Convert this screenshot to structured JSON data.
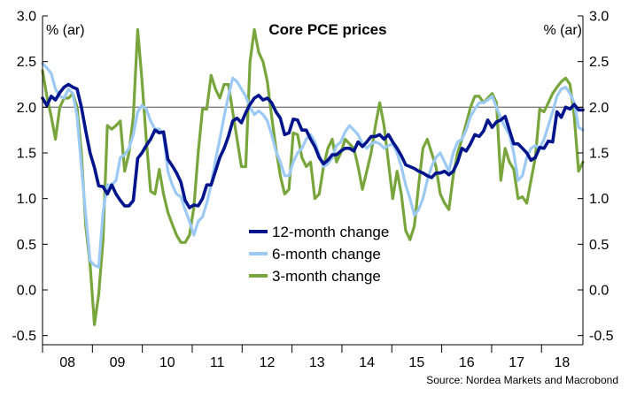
{
  "chart_data": {
    "type": "line",
    "title": "Core PCE prices",
    "ylabel_left": "% (ar)",
    "ylabel_right": "% (ar)",
    "source": "Source: Nordea Markets and Macrobond",
    "ylim": [
      -0.6,
      3.0
    ],
    "y_ticks": [
      "3.0",
      "2.5",
      "2.0",
      "1.5",
      "1.0",
      "0.5",
      "0.0",
      "-0.5"
    ],
    "y_tick_values": [
      3.0,
      2.5,
      2.0,
      1.5,
      1.0,
      0.5,
      0.0,
      -0.5
    ],
    "x_ticks": [
      "08",
      "09",
      "10",
      "11",
      "12",
      "13",
      "14",
      "15",
      "16",
      "17",
      "18"
    ],
    "x_start": 2008.0,
    "x_end": 2018.83,
    "reference_line": 2.0,
    "colors": {
      "12m": "#00148c",
      "6m": "#9ccaf5",
      "3m": "#78a53c",
      "ref": "#7f7f7f"
    },
    "legend_position": "center-left",
    "series": [
      {
        "name": "12-month change",
        "key": "12m",
        "values": [
          2.1,
          2.02,
          2.12,
          2.08,
          2.16,
          2.22,
          2.25,
          2.22,
          2.2,
          2.0,
          1.74,
          1.5,
          1.34,
          1.14,
          1.13,
          1.05,
          1.15,
          1.05,
          0.98,
          0.92,
          0.92,
          0.98,
          1.44,
          1.5,
          1.58,
          1.65,
          1.75,
          1.72,
          1.73,
          1.43,
          1.36,
          1.28,
          1.18,
          0.98,
          0.9,
          0.93,
          0.92,
          1.0,
          1.15,
          1.15,
          1.3,
          1.45,
          1.55,
          1.68,
          1.85,
          1.88,
          1.83,
          1.94,
          2.03,
          2.1,
          2.13,
          2.08,
          2.1,
          2.05,
          1.95,
          1.88,
          1.7,
          1.72,
          1.87,
          1.86,
          1.75,
          1.75,
          1.65,
          1.57,
          1.45,
          1.38,
          1.42,
          1.48,
          1.48,
          1.52,
          1.55,
          1.55,
          1.52,
          1.62,
          1.57,
          1.62,
          1.68,
          1.68,
          1.7,
          1.65,
          1.7,
          1.62,
          1.55,
          1.47,
          1.37,
          1.35,
          1.33,
          1.3,
          1.28,
          1.25,
          1.23,
          1.28,
          1.28,
          1.3,
          1.26,
          1.3,
          1.4,
          1.55,
          1.52,
          1.6,
          1.7,
          1.68,
          1.74,
          1.86,
          1.78,
          1.84,
          1.86,
          1.9,
          1.75,
          1.6,
          1.6,
          1.55,
          1.5,
          1.42,
          1.45,
          1.56,
          1.55,
          1.63,
          1.62,
          1.95,
          1.89,
          2.0,
          1.98,
          2.03,
          1.97,
          1.97
        ]
      },
      {
        "name": "6-month change",
        "key": "6m",
        "values": [
          2.48,
          2.43,
          2.37,
          2.2,
          2.12,
          2.1,
          2.2,
          2.15,
          1.9,
          1.35,
          0.82,
          0.32,
          0.27,
          0.25,
          0.85,
          1.15,
          1.15,
          1.2,
          1.45,
          1.48,
          1.55,
          1.7,
          1.95,
          2.02,
          1.98,
          1.85,
          1.76,
          1.76,
          1.7,
          1.3,
          1.15,
          1.05,
          1.02,
          0.88,
          0.75,
          0.6,
          0.75,
          0.8,
          0.95,
          1.15,
          1.42,
          1.65,
          1.9,
          2.12,
          2.32,
          2.28,
          2.2,
          2.12,
          2.0,
          1.92,
          1.96,
          1.92,
          1.85,
          1.7,
          1.52,
          1.4,
          1.25,
          1.25,
          1.4,
          1.5,
          1.55,
          1.65,
          1.7,
          1.62,
          1.48,
          1.35,
          1.38,
          1.45,
          1.58,
          1.62,
          1.73,
          1.8,
          1.75,
          1.7,
          1.6,
          1.55,
          1.6,
          1.62,
          1.6,
          1.55,
          1.58,
          1.6,
          1.5,
          1.35,
          1.15,
          1.0,
          0.82,
          0.88,
          1.0,
          1.2,
          1.35,
          1.45,
          1.5,
          1.4,
          1.3,
          1.5,
          1.62,
          1.65,
          1.75,
          1.9,
          1.98,
          2.05,
          2.05,
          2.08,
          2.12,
          2.0,
          1.88,
          1.78,
          1.7,
          1.5,
          1.2,
          1.25,
          1.45,
          1.55,
          1.58,
          1.55,
          1.65,
          1.8,
          1.95,
          2.12,
          2.2,
          2.22,
          2.15,
          2.05,
          1.78,
          1.75
        ]
      },
      {
        "name": "3-month change",
        "key": "3m",
        "values": [
          2.4,
          2.12,
          1.9,
          1.65,
          2.0,
          2.1,
          2.1,
          2.15,
          2.0,
          1.5,
          0.7,
          0.28,
          -0.38,
          -0.05,
          0.55,
          1.8,
          1.76,
          1.8,
          1.85,
          1.3,
          1.5,
          1.9,
          2.85,
          2.3,
          1.65,
          1.08,
          1.05,
          1.32,
          1.05,
          0.85,
          0.72,
          0.6,
          0.52,
          0.52,
          0.6,
          0.9,
          1.5,
          1.98,
          1.98,
          2.35,
          2.2,
          2.1,
          2.25,
          2.25,
          1.95,
          1.65,
          1.35,
          1.35,
          2.5,
          2.85,
          2.6,
          2.5,
          2.28,
          1.9,
          1.55,
          1.25,
          1.05,
          1.1,
          1.72,
          1.7,
          1.45,
          1.35,
          1.4,
          1.0,
          1.05,
          1.35,
          1.55,
          1.65,
          1.4,
          1.5,
          1.65,
          1.6,
          1.55,
          1.35,
          1.1,
          1.3,
          1.5,
          1.8,
          2.05,
          1.8,
          1.4,
          1.0,
          1.3,
          1.05,
          0.65,
          0.55,
          0.7,
          1.15,
          1.55,
          1.65,
          1.5,
          1.35,
          1.05,
          0.95,
          0.88,
          1.25,
          1.5,
          1.65,
          1.82,
          2.0,
          2.12,
          2.12,
          2.05,
          2.1,
          2.15,
          2.05,
          1.2,
          1.55,
          1.4,
          1.32,
          1.0,
          1.02,
          0.95,
          1.2,
          1.45,
          1.98,
          1.95,
          2.05,
          2.15,
          2.22,
          2.28,
          2.32,
          2.25,
          1.9,
          1.3,
          1.4
        ]
      }
    ]
  }
}
